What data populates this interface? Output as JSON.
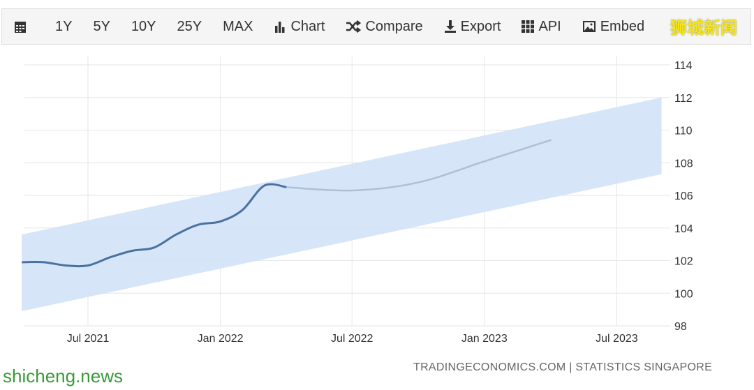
{
  "toolbar": {
    "items": [
      {
        "label": "",
        "icon": "calendar-icon"
      },
      {
        "label": "1Y"
      },
      {
        "label": "5Y"
      },
      {
        "label": "10Y"
      },
      {
        "label": "25Y"
      },
      {
        "label": "MAX"
      },
      {
        "label": "Chart",
        "icon": "bar-chart-icon"
      },
      {
        "label": "Compare",
        "icon": "shuffle-icon"
      },
      {
        "label": "Export",
        "icon": "download-icon"
      },
      {
        "label": "API",
        "icon": "grid-icon"
      },
      {
        "label": "Embed",
        "icon": "image-icon"
      }
    ]
  },
  "watermarks": {
    "cn": "狮城新闻",
    "en": "shicheng.news"
  },
  "footer": "TRADINGECONOMICS.COM | STATISTICS SINGAPORE",
  "colors": {
    "actual": "#4a72a0",
    "forecast": "#b0bfd6",
    "band": "#d3e2f7"
  },
  "chart_data": {
    "type": "line",
    "ylim": [
      98,
      114
    ],
    "yticks": [
      98,
      100,
      102,
      104,
      106,
      108,
      110,
      112,
      114
    ],
    "xticks": [
      "Jul 2021",
      "Jan 2022",
      "Jul 2022",
      "Jan 2023",
      "Jul 2023"
    ],
    "grid": true,
    "series": [
      {
        "kind": "actual",
        "x": [
          "2021-04",
          "2021-05",
          "2021-06",
          "2021-07",
          "2021-08",
          "2021-09",
          "2021-10",
          "2021-11",
          "2021-12",
          "2022-01",
          "2022-02",
          "2022-03",
          "2022-04"
        ],
        "values": [
          101.9,
          101.9,
          101.7,
          101.7,
          102.2,
          102.6,
          102.8,
          103.6,
          104.2,
          104.4,
          105.1,
          106.6,
          106.5
        ]
      },
      {
        "kind": "forecast",
        "x": [
          "2022-04",
          "2022-07",
          "2022-10",
          "2023-01",
          "2023-04"
        ],
        "values": [
          106.5,
          106.3,
          106.8,
          108.1,
          109.4
        ]
      }
    ],
    "band": {
      "x": [
        "2021-04",
        "2023-09"
      ],
      "upper": [
        103.6,
        112.0
      ],
      "lower": [
        98.9,
        107.3
      ]
    }
  }
}
